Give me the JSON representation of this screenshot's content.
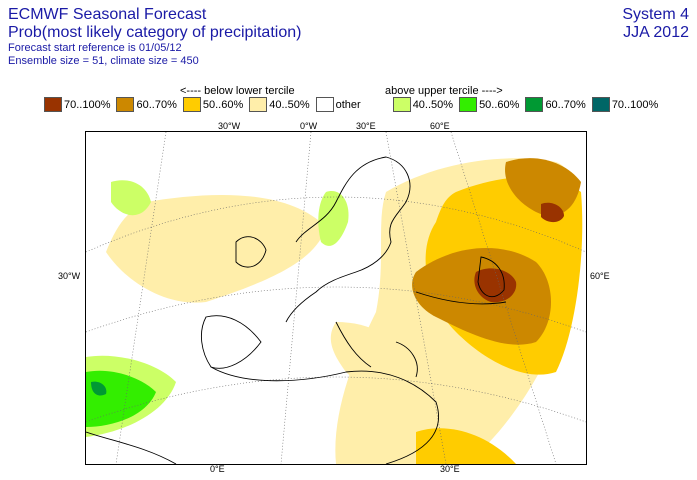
{
  "header": {
    "title": "ECMWF Seasonal Forecast",
    "subtitle": "Prob(most likely category of precipitation)",
    "line3": "Forecast start reference is 01/05/12",
    "line4": "Ensemble size = 51, climate size = 450",
    "system": "System 4",
    "season": "JJA 2012"
  },
  "legend": {
    "below_note": "<---- below lower tercile",
    "above_note": "above upper tercile ---->",
    "items": [
      {
        "label": "70..100%",
        "color": "#993300"
      },
      {
        "label": "60..70%",
        "color": "#cc8800"
      },
      {
        "label": "50..60%",
        "color": "#ffcc00"
      },
      {
        "label": "40..50%",
        "color": "#ffeeaa"
      },
      {
        "label": "other",
        "color": "#ffffff"
      },
      {
        "label": "40..50%",
        "color": "#ccff66"
      },
      {
        "label": "50..60%",
        "color": "#33ee00"
      },
      {
        "label": "60..70%",
        "color": "#009933"
      },
      {
        "label": "70..100%",
        "color": "#006666"
      }
    ]
  },
  "map": {
    "lon_labels_top": [
      "30°W",
      "0°W",
      "30°E",
      "60°E"
    ],
    "lon_labels_bottom": [
      "0°E",
      "30°E"
    ],
    "lat_left": "30°W",
    "lat_right": "60°E"
  }
}
